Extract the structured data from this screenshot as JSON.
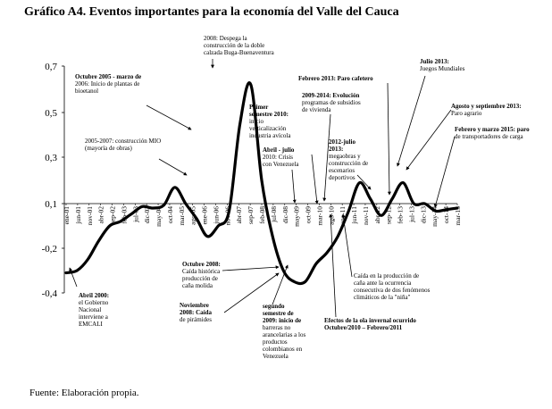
{
  "title": "Gráfico A4. Eventos importantes para la economía del Valle del Cauca",
  "source": "Fuente: Elaboración propia.",
  "chart_data": {
    "type": "line",
    "ylim": [
      -0.4,
      0.7
    ],
    "yticks": [
      "0,7",
      "0,5",
      "0,3",
      "0,1",
      "-0,2",
      "-0,4"
    ],
    "xticks": [
      "ene-01",
      "jun-01",
      "nov-01",
      "abr-02",
      "sep-02",
      "feb-03",
      "jul-03",
      "dic-03",
      "may-04",
      "oct-04",
      "mar-05",
      "ago-05",
      "ene-06",
      "jun-06",
      "nov-06",
      "abr-07",
      "sep-07",
      "feb-08",
      "jul-08",
      "dic-08",
      "may-09",
      "oct-09",
      "mar-10",
      "ago-10",
      "ene-11",
      "jun-11",
      "nov-11",
      "abr-12",
      "sep-12",
      "feb-13",
      "jul-13",
      "dic-13",
      "may-14",
      "oct-14",
      "mar-15"
    ],
    "series": [
      {
        "values": [
          -0.31,
          -0.3,
          -0.25,
          -0.15,
          -0.05,
          -0.02,
          0.03,
          0.08,
          0.07,
          0.09,
          0.17,
          0.1,
          0.0,
          -0.12,
          -0.05,
          0.05,
          0.45,
          0.62,
          0.2,
          -0.12,
          -0.3,
          -0.35,
          -0.35,
          -0.27,
          -0.22,
          -0.12,
          0.05,
          0.19,
          0.12,
          0.02,
          0.12,
          0.19,
          0.1,
          0.1,
          0.05,
          0.06,
          0.07
        ]
      }
    ],
    "annotations": [
      {
        "text": "Octubre 2005 - marzo de 2006: Inicio de plantas de bioetanol",
        "bold_prefix": "Octubre 2005 - marzo de 2006:"
      },
      {
        "text": "2008: Despega la construcción de la doble calzada Buga-Buenaventura"
      },
      {
        "text": "2005-2007: construcción MIO (mayoría de obras)"
      },
      {
        "text": "Primer semestre 2010: inicio verticalización industria avícola",
        "bold_prefix": "Primer semestre 2010:"
      },
      {
        "text": "Abril - julio 2010: Crisis con Venezuela",
        "bold_prefix": "Abril - julio"
      },
      {
        "text": "Febrero 2013: Paro cafetero",
        "bold_prefix": "Febrero 2013:"
      },
      {
        "text": "2009-2014: Evolución programas de subsidios de vivienda",
        "bold_prefix": "2009-2014:"
      },
      {
        "text": "2012-julio 2013: megaobras y construcción de escenarios deportivos",
        "bold_prefix": "2012-julio 2013:"
      },
      {
        "text": "Julio 2013: Juegos Mundiales",
        "bold_prefix": "Julio 2013:"
      },
      {
        "text": "Agosto y septiembre 2013: Paro agrario",
        "bold_prefix": "Agosto y septiembre 2013:"
      },
      {
        "text": "Febrero y marzo 2015: paro de transportadores de carga",
        "bold_prefix": "Febrero y marzo 2015:"
      },
      {
        "text": "Abril 2000: el Gobierno Nacional interviene a EMCALI",
        "bold_prefix": "Abril 2000:"
      },
      {
        "text": "Octubre 2008: Caída histórica producción de caña molida",
        "bold_prefix": "Octubre 2008:"
      },
      {
        "text": "Noviembre 2008: Caída de pirámides",
        "bold_prefix": "Noviembre 2008:"
      },
      {
        "text": "segundo semestre de 2009: inicio de barreras no arancelarias a los productos colombianos en Venezuela",
        "bold_prefix": "segundo semestre de 2009:"
      },
      {
        "text": "Caída en la producción de caña ante la ocurrencia consecutiva de dos fenómenos climáticos de la \"niña\""
      },
      {
        "text": "Efectos de la ola invernal ocurrido Octubre/2010 – Febrero/2011",
        "bold_prefix": "Efectos de la ola invernal ocurrido Octubre/2010 – Febrero/2011"
      }
    ]
  }
}
